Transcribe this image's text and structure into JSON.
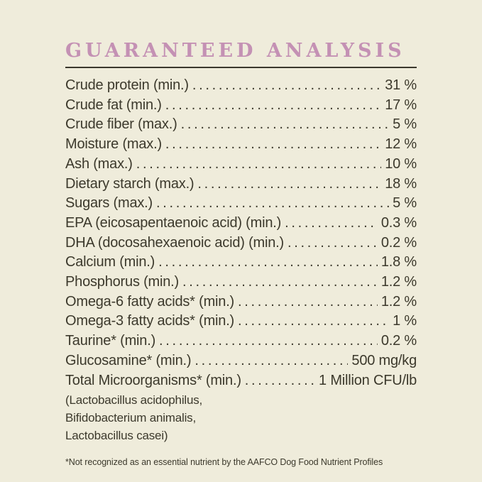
{
  "title": "GUARANTEED ANALYSIS",
  "rows": [
    {
      "label": "Crude protein (min.)",
      "value": "31 %"
    },
    {
      "label": "Crude fat (min.)",
      "value": "17 %"
    },
    {
      "label": "Crude fiber (max.)",
      "value": "5 %"
    },
    {
      "label": "Moisture (max.)",
      "value": "12 %"
    },
    {
      "label": "Ash (max.)",
      "value": "10 %"
    },
    {
      "label": "Dietary starch (max.)",
      "value": "18 %"
    },
    {
      "label": "Sugars (max.)",
      "value": "5 %"
    },
    {
      "label": "EPA (eicosapentaenoic acid) (min.)",
      "value": "0.3 %"
    },
    {
      "label": "DHA (docosahexaenoic acid) (min.)",
      "value": "0.2 %"
    },
    {
      "label": "Calcium (min.)",
      "value": "1.8 %"
    },
    {
      "label": "Phosphorus (min.)",
      "value": "1.2 %"
    },
    {
      "label": "Omega-6 fatty acids* (min.)",
      "value": "1.2 %"
    },
    {
      "label": "Omega-3 fatty acids* (min.)",
      "value": "1 %"
    },
    {
      "label": "Taurine* (min.)",
      "value": "0.2 %"
    },
    {
      "label": "Glucosamine* (min.)",
      "value": "500 mg/kg"
    },
    {
      "label": "Total Microorganisms* (min.)",
      "value": "1 Million CFU/lb"
    }
  ],
  "microorganisms_note": "(Lactobacillus acidophilus, Bifidobacterium animalis, Lactobacillus casei)",
  "footnote": "*Not recognized as an essential nutrient by the AAFCO Dog Food Nutrient Profiles",
  "colors": {
    "background": "#efecdb",
    "title": "#c491b4",
    "text": "#3c392c",
    "rule": "#3a372c"
  }
}
